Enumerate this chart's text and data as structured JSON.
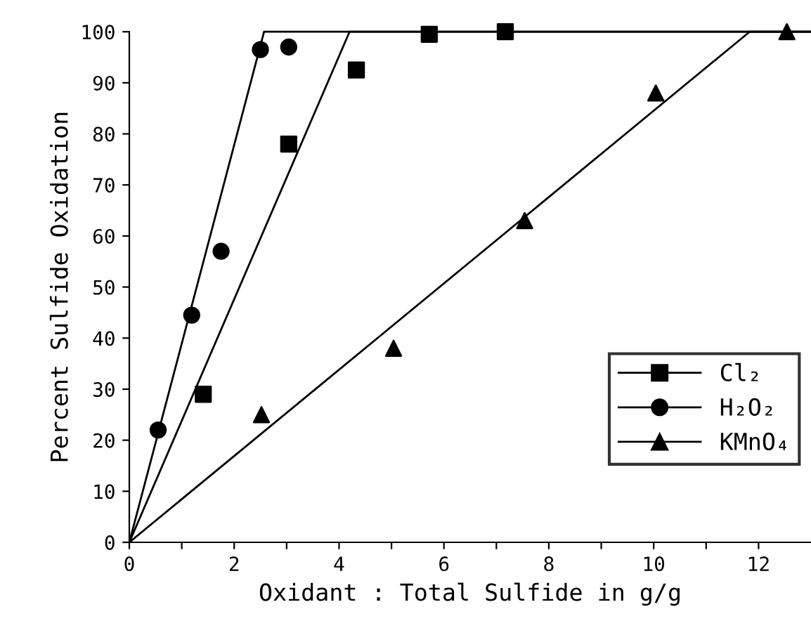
{
  "chart_data": {
    "type": "scatter",
    "xlabel": "Oxidant : Total Sulfide in g/g",
    "ylabel": "Percent Sulfide Oxidation",
    "xlim": [
      0,
      13
    ],
    "ylim": [
      0,
      100
    ],
    "xticks": [
      0,
      {
        "value": 1,
        "label": null
      },
      2,
      {
        "value": 3,
        "label": null
      },
      4,
      {
        "value": 5,
        "label": null
      },
      6,
      {
        "value": 7,
        "label": null
      },
      8,
      {
        "value": 9,
        "label": null
      },
      10,
      {
        "value": 11,
        "label": null
      },
      12
    ],
    "yticks": [
      0,
      10,
      20,
      30,
      40,
      50,
      60,
      70,
      80,
      90,
      100
    ],
    "grid": false,
    "legend": "bottom right",
    "series": [
      {
        "name": "Cl₂",
        "color": "#000000",
        "marker": "square",
        "x": [
          1.41,
          3.04,
          4.33,
          5.72,
          7.17
        ],
        "values": [
          29,
          78,
          92.5,
          99.5,
          100
        ]
      },
      {
        "name": "H₂O₂",
        "color": "#000000",
        "marker": "circle",
        "x": [
          0.55,
          1.19,
          1.75,
          2.5,
          3.04
        ],
        "values": [
          22,
          44.5,
          57,
          96.5,
          97
        ]
      },
      {
        "name": "KMnO₄",
        "color": "#000000",
        "marker": "triangle",
        "x": [
          2.52,
          5.04,
          7.54,
          10.04,
          12.54
        ],
        "values": [
          25,
          38,
          63,
          88,
          100
        ]
      },
      {
        "type": "line",
        "color": "#000000",
        "marker": "none",
        "line_style": "solid",
        "x": [
          0,
          4.2,
          13
        ],
        "values": [
          0,
          100,
          100
        ]
      },
      {
        "type": "line",
        "color": "#000000",
        "marker": "none",
        "line_style": "solid",
        "x": [
          0,
          2.57,
          13
        ],
        "values": [
          0,
          100,
          100
        ]
      },
      {
        "type": "line",
        "color": "#000000",
        "marker": "none",
        "line_style": "solid",
        "x": [
          0,
          11.83,
          13
        ],
        "values": [
          0,
          100,
          100
        ]
      }
    ]
  }
}
